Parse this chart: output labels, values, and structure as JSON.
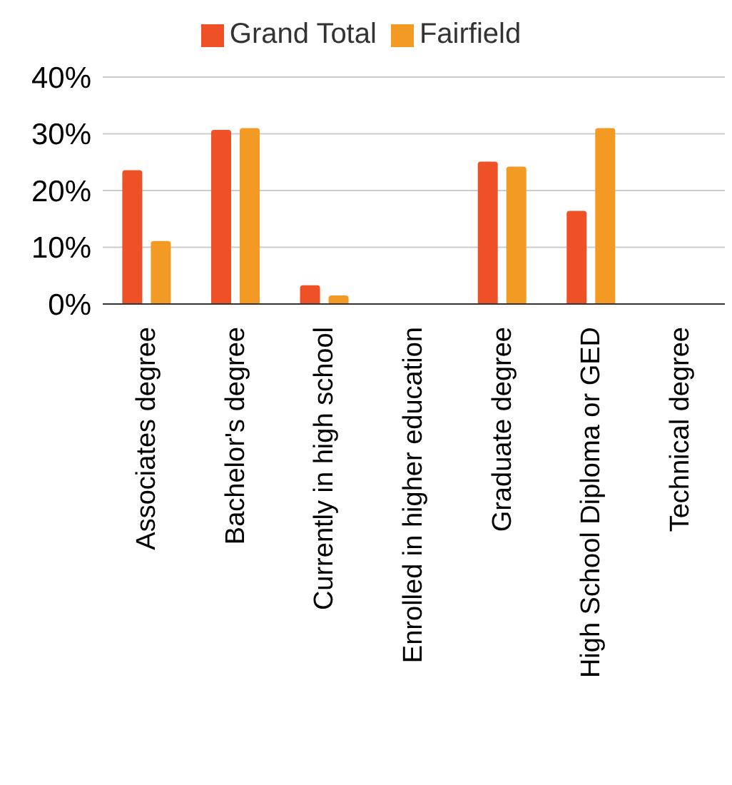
{
  "chart_data": {
    "type": "bar",
    "categories": [
      "Associates degree",
      "Bachelor's degree",
      "Currently in high school",
      "Enrolled in higher education",
      "Graduate degree",
      "High School Diploma or GED",
      "Technical degree"
    ],
    "series": [
      {
        "name": "Grand Total",
        "color": "#ee5126",
        "values": [
          23.6,
          30.7,
          3.3,
          0,
          25.1,
          16.4,
          0
        ]
      },
      {
        "name": "Fairfield",
        "color": "#f39a25",
        "values": [
          11.1,
          31.0,
          1.5,
          0,
          24.2,
          31.0,
          0
        ]
      }
    ],
    "ylim": [
      0,
      40
    ],
    "yticks": [
      {
        "value": 0,
        "label": "0%"
      },
      {
        "value": 10,
        "label": "10%"
      },
      {
        "value": 20,
        "label": "20%"
      },
      {
        "value": 30,
        "label": "30%"
      },
      {
        "value": 40,
        "label": "40%"
      }
    ],
    "grid": "y",
    "legend": "top"
  }
}
